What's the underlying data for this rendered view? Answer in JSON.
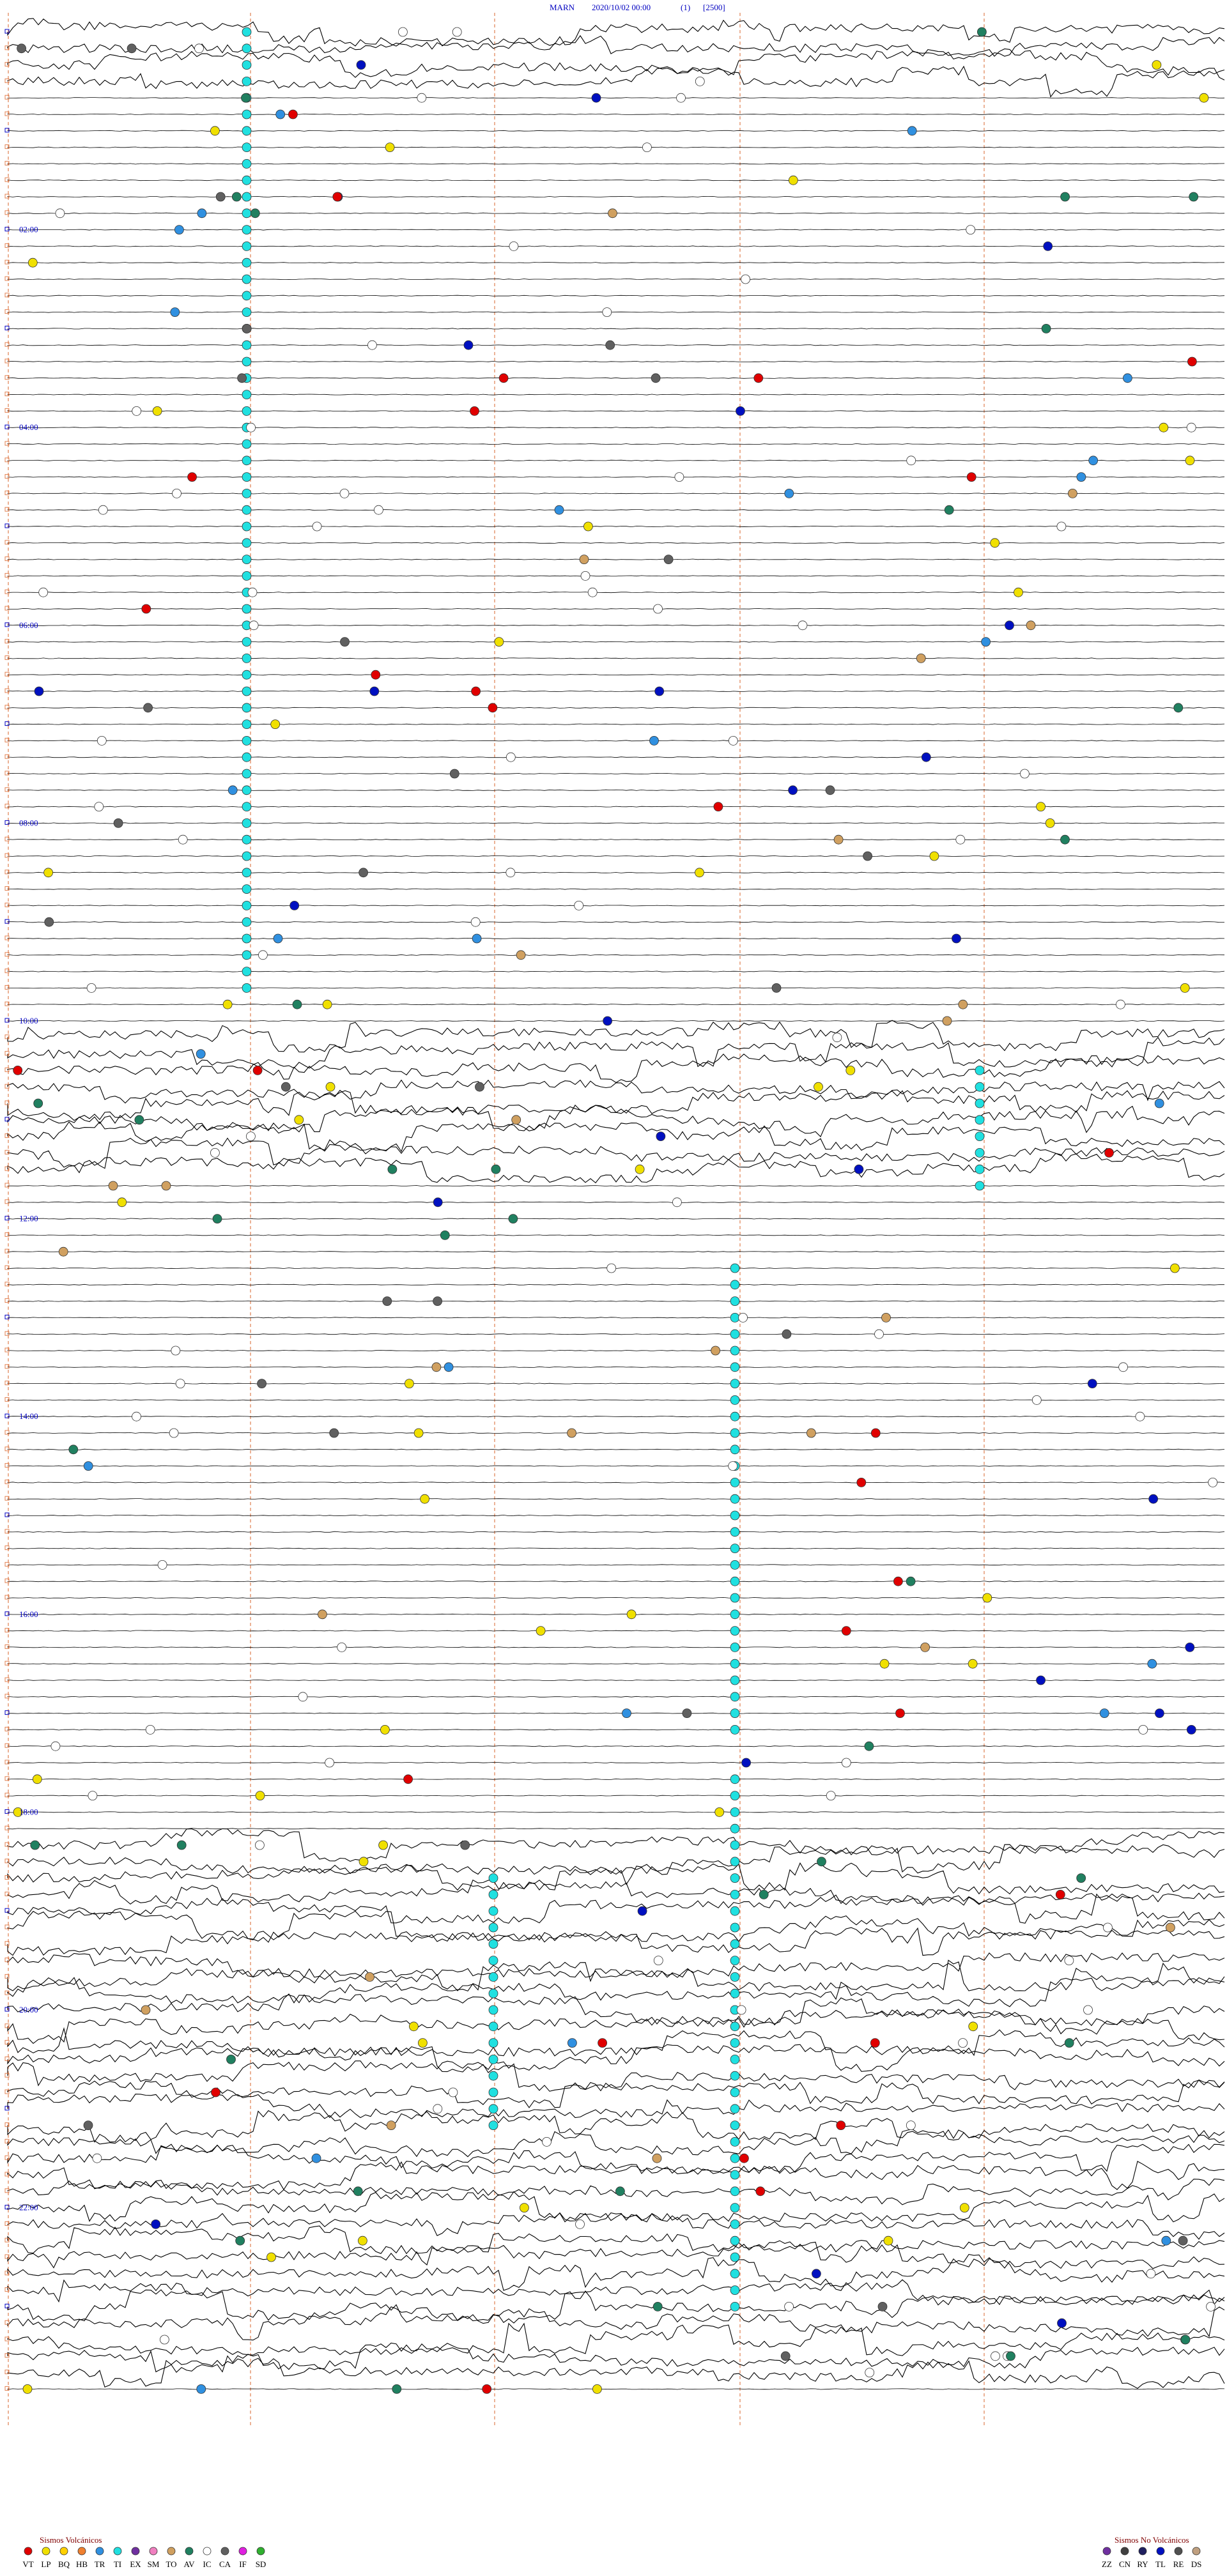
{
  "header": {
    "station": "MARN",
    "datetime": "2020/10/02 00:00",
    "channel": "(1)",
    "scale": "[2500]"
  },
  "time_labels": [
    "02:00",
    "04:00",
    "06:00",
    "08:00",
    "10:00",
    "12:00",
    "14:00",
    "16:00",
    "18:00",
    "20:00",
    "22:00"
  ],
  "legend_volcanic": {
    "title": "Sismos Volcánicos",
    "items": [
      {
        "code": "VT",
        "color": "#e00000"
      },
      {
        "code": "LP",
        "color": "#f0e000"
      },
      {
        "code": "BQ",
        "color": "#ffd000"
      },
      {
        "code": "HB",
        "color": "#f08030"
      },
      {
        "code": "TR",
        "color": "#3090e0"
      },
      {
        "code": "TI",
        "color": "#20e0e0"
      },
      {
        "code": "EX",
        "color": "#7030a0"
      },
      {
        "code": "SM",
        "color": "#f080c0"
      },
      {
        "code": "TO",
        "color": "#d0a060"
      },
      {
        "code": "AV",
        "color": "#208060"
      },
      {
        "code": "IC",
        "color": "#ffffff"
      },
      {
        "code": "CA",
        "color": "#606060"
      },
      {
        "code": "IF",
        "color": "#e020e0"
      },
      {
        "code": "SD",
        "color": "#30b030"
      }
    ]
  },
  "legend_nonvolcanic": {
    "title": "Sismos No Volcánicos",
    "items": [
      {
        "code": "ZZ",
        "color": "#7030a0"
      },
      {
        "code": "CN",
        "color": "#404040"
      },
      {
        "code": "RY",
        "color": "#202060"
      },
      {
        "code": "TL",
        "color": "#0010c0"
      },
      {
        "code": "RE",
        "color": "#505050"
      },
      {
        "code": "DS",
        "color": "#c0a080"
      }
    ]
  }
}
